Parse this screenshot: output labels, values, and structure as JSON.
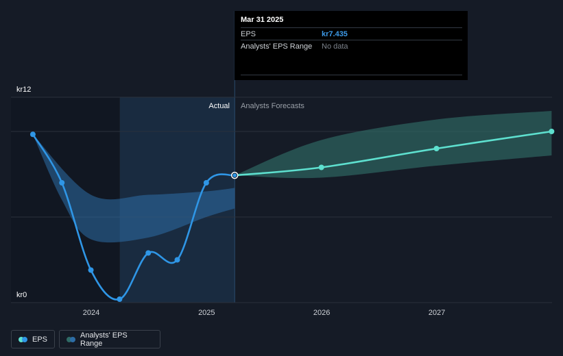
{
  "chart_data": {
    "type": "line",
    "y_axis": {
      "labels": [
        "kr12",
        "kr0"
      ],
      "ylim": [
        0,
        12
      ]
    },
    "x_axis": {
      "ticks": [
        "2024",
        "2025",
        "2026",
        "2027"
      ]
    },
    "section_labels": {
      "actual": "Actual",
      "forecast": "Analysts Forecasts"
    },
    "series": [
      {
        "name": "EPS",
        "kind": "actual",
        "points": [
          {
            "x": "2023-06-30",
            "y": 9.83
          },
          {
            "x": "2023-09-30",
            "y": 7.0
          },
          {
            "x": "2023-12-31",
            "y": 1.9
          },
          {
            "x": "2024-03-31",
            "y": 0.2
          },
          {
            "x": "2024-06-30",
            "y": 2.9
          },
          {
            "x": "2024-09-30",
            "y": 2.5
          },
          {
            "x": "2024-12-31",
            "y": 7.0
          },
          {
            "x": "2025-03-31",
            "y": 7.435
          }
        ]
      },
      {
        "name": "EPS",
        "kind": "forecast",
        "points": [
          {
            "x": "2025-03-31",
            "y": 7.435
          },
          {
            "x": "2025-12-31",
            "y": 7.9
          },
          {
            "x": "2026-12-31",
            "y": 9.0
          },
          {
            "x": "2027-12-31",
            "y": 10.0
          }
        ]
      }
    ],
    "ranges": [
      {
        "name": "Analysts' EPS Range",
        "kind": "past",
        "upper": [
          {
            "x": "2023-06-30",
            "y": 9.83
          },
          {
            "x": "2023-12-31",
            "y": 6.3
          },
          {
            "x": "2024-06-30",
            "y": 6.3
          },
          {
            "x": "2024-12-31",
            "y": 6.5
          },
          {
            "x": "2025-03-31",
            "y": 6.7
          }
        ],
        "lower": [
          {
            "x": "2023-06-30",
            "y": 9.83
          },
          {
            "x": "2023-09-30",
            "y": 6.0
          },
          {
            "x": "2023-12-31",
            "y": 3.7
          },
          {
            "x": "2024-06-30",
            "y": 3.8
          },
          {
            "x": "2024-12-31",
            "y": 5.0
          },
          {
            "x": "2025-03-31",
            "y": 5.5
          }
        ]
      },
      {
        "name": "Analysts' EPS Range",
        "kind": "forecast",
        "upper": [
          {
            "x": "2025-03-31",
            "y": 7.435
          },
          {
            "x": "2025-12-31",
            "y": 9.5
          },
          {
            "x": "2026-12-31",
            "y": 10.7
          },
          {
            "x": "2027-12-31",
            "y": 11.2
          }
        ],
        "lower": [
          {
            "x": "2025-03-31",
            "y": 7.435
          },
          {
            "x": "2025-12-31",
            "y": 7.3
          },
          {
            "x": "2026-12-31",
            "y": 8.0
          },
          {
            "x": "2027-12-31",
            "y": 8.6
          }
        ]
      }
    ],
    "highlight_date": "2025-03-31",
    "grid": true
  },
  "tooltip": {
    "date": "Mar 31 2025",
    "rows": [
      {
        "label": "EPS",
        "value": "kr7.435"
      },
      {
        "label": "Analysts' EPS Range",
        "value": "No data"
      }
    ]
  },
  "legend": [
    {
      "label": "EPS"
    },
    {
      "label": "Analysts' EPS Range"
    }
  ],
  "colors": {
    "eps_actual": "#2f96e6",
    "eps_forecast": "#5ee0cf",
    "range_past": "#2d6da6",
    "range_forecast": "#2f6b66",
    "background": "#151b26"
  }
}
